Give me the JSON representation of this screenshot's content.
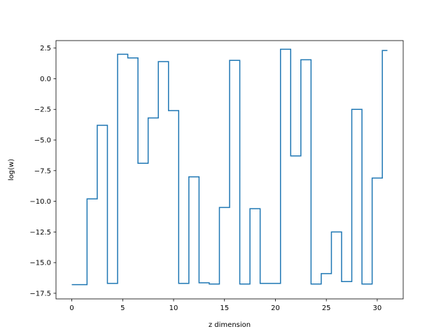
{
  "chart_data": {
    "type": "line",
    "drawstyle": "steps-mid",
    "title": "",
    "xlabel": "z dimension",
    "ylabel": "log(w)",
    "xlim": [
      -1.55,
      32.55
    ],
    "ylim": [
      -17.96,
      3.11
    ],
    "xticks": [
      0,
      5,
      10,
      15,
      20,
      25,
      30
    ],
    "xtick_labels": [
      "0",
      "5",
      "10",
      "15",
      "20",
      "25",
      "30"
    ],
    "yticks": [
      2.5,
      0.0,
      -2.5,
      -5.0,
      -7.5,
      -10.0,
      -12.5,
      -15.0,
      -17.5
    ],
    "ytick_labels": [
      "2.5",
      "0.0",
      "−2.5",
      "−5.0",
      "−7.5",
      "−10.0",
      "−12.5",
      "−15.0",
      "−17.5"
    ],
    "grid": false,
    "color": "#1f77b4",
    "series": [
      {
        "x": [
          0,
          1,
          2,
          3,
          4,
          5,
          6,
          7,
          8,
          9,
          10,
          11,
          12,
          13,
          14,
          15,
          16,
          17,
          18,
          19,
          20,
          21,
          22,
          23,
          24,
          25,
          26,
          27,
          28,
          29,
          30,
          31
        ],
        "y": [
          -16.8,
          -16.8,
          -9.8,
          -3.8,
          -16.7,
          2.0,
          1.7,
          -6.9,
          -3.2,
          1.4,
          -2.6,
          -16.7,
          -8.0,
          -16.65,
          -16.75,
          -10.5,
          1.5,
          -16.75,
          -10.6,
          -16.7,
          -16.7,
          2.4,
          -6.3,
          1.55,
          -16.75,
          -15.9,
          -12.5,
          -16.55,
          -2.5,
          -16.75,
          -8.1,
          2.3
        ]
      }
    ]
  }
}
